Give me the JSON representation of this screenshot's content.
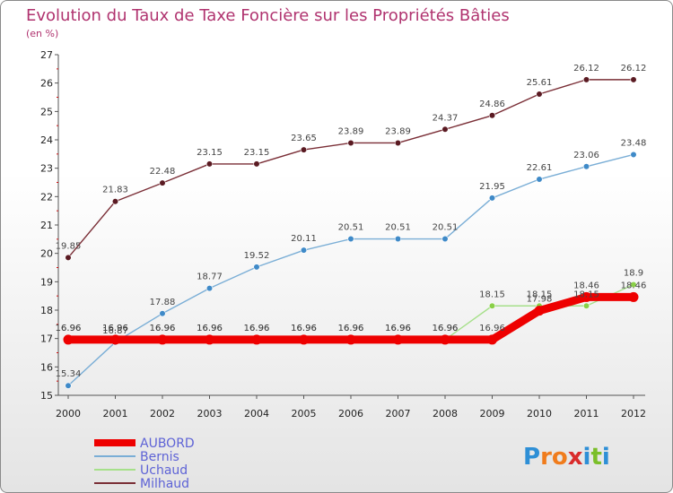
{
  "chart_data": {
    "type": "line",
    "title": "Evolution du Taux de Taxe Foncière sur les Propriétés Bâties",
    "subtitle": "(en %)",
    "xlabel": "",
    "ylabel": "",
    "x": [
      "2000",
      "2001",
      "2002",
      "2003",
      "2004",
      "2005",
      "2006",
      "2007",
      "2008",
      "2009",
      "2010",
      "2011",
      "2012"
    ],
    "ylim": [
      15,
      27
    ],
    "yticks": [
      "15",
      "16",
      "17",
      "18",
      "19",
      "20",
      "21",
      "22",
      "23",
      "24",
      "25",
      "26",
      "27"
    ],
    "grid": false,
    "legend_position": "bottom-left",
    "series": [
      {
        "name": "Milhaud",
        "color": "#7a2e36",
        "marker": "#5a1a22",
        "values": [
          19.85,
          21.83,
          22.48,
          23.15,
          23.15,
          23.65,
          23.89,
          23.89,
          24.37,
          24.86,
          25.61,
          26.12,
          26.12
        ],
        "labels": [
          "19.85",
          "21.83",
          "22.48",
          "23.15",
          "23.15",
          "23.65",
          "23.89",
          "23.89",
          "24.37",
          "24.86",
          "25.61",
          "26.12",
          "26.12"
        ]
      },
      {
        "name": "Bernis",
        "color": "#7aaed6",
        "marker": "#3f8ac8",
        "values": [
          15.34,
          16.87,
          17.88,
          18.77,
          19.52,
          20.11,
          20.51,
          20.51,
          20.51,
          21.95,
          22.61,
          23.06,
          23.48
        ],
        "labels": [
          "15.34",
          "16.87",
          "17.88",
          "18.77",
          "19.52",
          "20.11",
          "20.51",
          "20.51",
          "20.51",
          "21.95",
          "22.61",
          "23.06",
          "23.48"
        ]
      },
      {
        "name": "Uchaud",
        "color": "#a6e08a",
        "marker": "#8ad048",
        "values": [
          16.96,
          16.96,
          16.96,
          16.96,
          16.96,
          16.96,
          16.96,
          16.96,
          16.96,
          18.15,
          18.15,
          18.15,
          18.9
        ],
        "labels": [
          "16.96",
          "16.96",
          "16.96",
          "16.96",
          "16.96",
          "16.96",
          "16.96",
          "16.96",
          "16.96",
          "18.15",
          "18.15",
          "18.15",
          "18.9"
        ]
      },
      {
        "name": "AUBORD",
        "color": "#ee0000",
        "marker": "#ee0000",
        "values": [
          16.96,
          16.96,
          16.96,
          16.96,
          16.96,
          16.96,
          16.96,
          16.96,
          16.96,
          16.96,
          17.98,
          18.46,
          18.46
        ],
        "labels": [
          "16.96",
          "16.96",
          "16.96",
          "16.96",
          "16.96",
          "16.96",
          "16.96",
          "16.96",
          "16.96",
          "16.96",
          "17.98",
          "18.46",
          "18.46"
        ]
      }
    ],
    "legend": [
      "AUBORD",
      "Bernis",
      "Uchaud",
      "Milhaud"
    ]
  },
  "logo": {
    "text": "Proxiti",
    "letters": [
      {
        "ch": "P",
        "color": "#2e8fd6"
      },
      {
        "ch": "r",
        "color": "#f07c1c"
      },
      {
        "ch": "o",
        "color": "#f07c1c"
      },
      {
        "ch": "x",
        "color": "#d92b2b"
      },
      {
        "ch": "i",
        "color": "#2e8fd6"
      },
      {
        "ch": "t",
        "color": "#7bbf2a"
      },
      {
        "ch": "i",
        "color": "#2e8fd6"
      }
    ]
  }
}
